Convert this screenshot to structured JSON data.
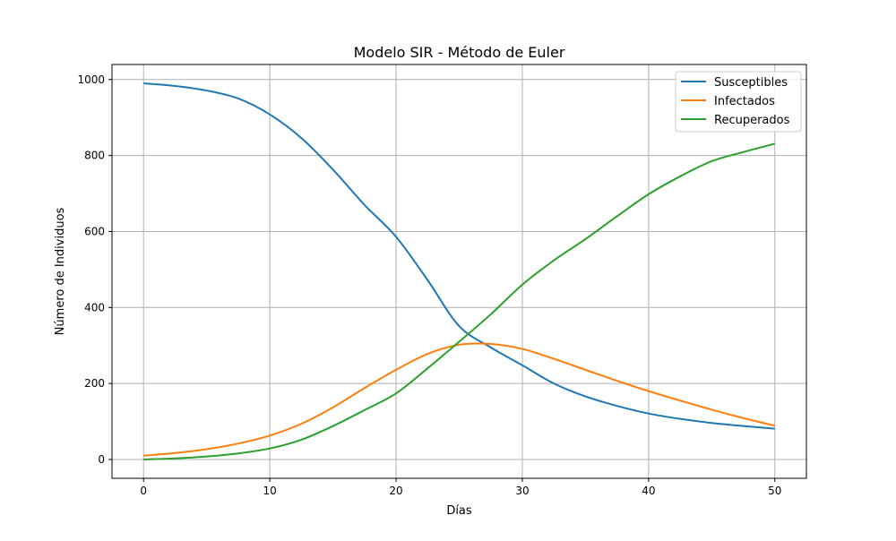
{
  "chart_data": {
    "type": "line",
    "title": "Modelo SIR - Método de Euler",
    "xlabel": "Días",
    "ylabel": "Número de Individuos",
    "xlim": [
      -2.5,
      52.5
    ],
    "ylim": [
      -49.5,
      1039.5
    ],
    "xticks": [
      0,
      10,
      20,
      30,
      40,
      50
    ],
    "yticks": [
      0,
      200,
      400,
      600,
      800,
      1000
    ],
    "grid": true,
    "legend_position": "top-right",
    "x": [
      0,
      2.5,
      5,
      7.5,
      10,
      12.5,
      15,
      17.5,
      20,
      22.5,
      25,
      27.5,
      30,
      32.5,
      35,
      37.5,
      40,
      42.5,
      45,
      47.5,
      50
    ],
    "series": [
      {
        "name": "Susceptibles",
        "color": "#1f77b4",
        "values": [
          990,
          983,
          971,
          950,
          908,
          846,
          763,
          670,
          586,
          472,
          351,
          295,
          248,
          200,
          166,
          141,
          121,
          107,
          96,
          88,
          81
        ]
      },
      {
        "name": "Infectados",
        "color": "#ff7f0e",
        "values": [
          10,
          17,
          27,
          42,
          63,
          94,
          137,
          188,
          236,
          278,
          302,
          304,
          291,
          265,
          236,
          207,
          180,
          155,
          131,
          109,
          89
        ]
      },
      {
        "name": "Recuperados",
        "color": "#2ca02c",
        "values": [
          0,
          3,
          8,
          16,
          29,
          52,
          88,
          130,
          174,
          240,
          310,
          382,
          460,
          524,
          580,
          640,
          698,
          745,
          785,
          809,
          831
        ]
      }
    ]
  }
}
